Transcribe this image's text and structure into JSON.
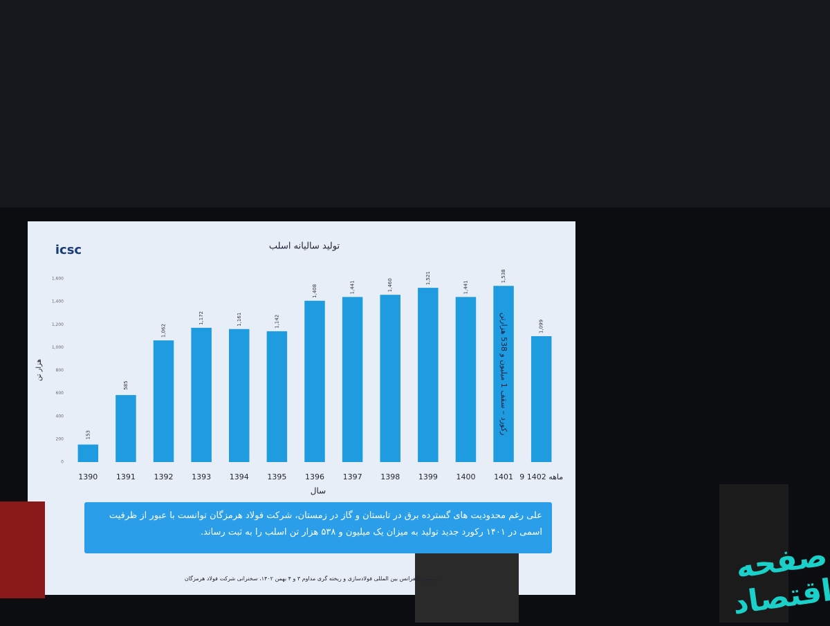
{
  "chart_data": {
    "type": "bar",
    "title": "تولید سالیانه اسلب",
    "y_label": "هزار تن",
    "x_label": "سال",
    "logo": "icsc",
    "categories": [
      "1390",
      "1391",
      "1392",
      "1393",
      "1394",
      "1395",
      "1396",
      "1397",
      "1398",
      "1399",
      "1400",
      "1401",
      "9 ماهه 1402"
    ],
    "values": [
      153,
      585,
      1062,
      1172,
      1161,
      1142,
      1408,
      1441,
      1460,
      1521,
      1441,
      1538,
      1099
    ],
    "value_labels": [
      "153",
      "585",
      "1,062",
      "1,172",
      "1,161",
      "1,142",
      "1,408",
      "1,441",
      "1,460",
      "1,521",
      "1,441",
      "1,538",
      "1,099"
    ],
    "color": "#1f9be0",
    "ylim": [
      0,
      1600
    ],
    "yticks": [
      0,
      200,
      400,
      600,
      800,
      {
        "value": 1000,
        "label": "1,000"
      },
      {
        "value": 1200,
        "label": "1,200"
      },
      {
        "value": 1400,
        "label": "1,400"
      },
      {
        "value": 1600,
        "label": "1,600"
      }
    ],
    "annotation": "رکورد – سقف 1 میلیون و 538 هزارتن",
    "note": "علی رغم محدودیت های گسترده برق در تابستان و گاز در زمستان، شرکت فولاد هرمزگان توانست با عبور از ظرفیت اسمی در ۱۴۰۱ رکورد جدید تولید به میزان یک میلیون و ۵۳۸ هزار تن اسلب را به ثبت رساند.",
    "footer": "سومین کنفرانس بین المللی فولادسازی و ریخته گری مداوم ۳ و ۴ بهمن ۱۴۰۲، سخنرانی شرکت فولاد هرمزگان",
    "watermark": "صفحه اقتصاد"
  }
}
